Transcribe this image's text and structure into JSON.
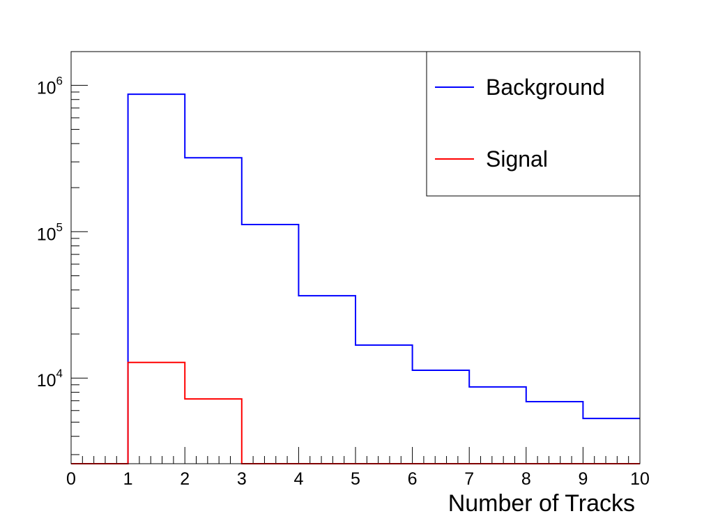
{
  "chart_data": {
    "type": "histogram",
    "xlabel": "Number of Tracks",
    "ylabel": "",
    "x_scale": "linear",
    "y_scale": "log",
    "xlim": [
      0,
      10
    ],
    "ylim": [
      2600,
      1700000
    ],
    "x_ticks": [
      "0",
      "1",
      "2",
      "3",
      "4",
      "5",
      "6",
      "7",
      "8",
      "9",
      "10"
    ],
    "y_ticks": [
      {
        "value": 10000,
        "base": "10",
        "exp": "4"
      },
      {
        "value": 100000,
        "base": "10",
        "exp": "5"
      },
      {
        "value": 1000000,
        "base": "10",
        "exp": "6"
      }
    ],
    "bin_edges": [
      0,
      1,
      2,
      3,
      4,
      5,
      6,
      7,
      8,
      9,
      10
    ],
    "series": [
      {
        "name": "Background",
        "color": "#0000ff",
        "values": [
          0,
          870000,
          320000,
          112000,
          36500,
          16800,
          11300,
          8700,
          6900,
          5300
        ]
      },
      {
        "name": "Signal",
        "color": "#ff0000",
        "values": [
          0,
          12800,
          7200,
          0,
          0,
          0,
          0,
          0,
          0,
          0
        ]
      }
    ],
    "legend": {
      "position": "top-right",
      "entries": [
        "Background",
        "Signal"
      ]
    },
    "grid": false
  }
}
